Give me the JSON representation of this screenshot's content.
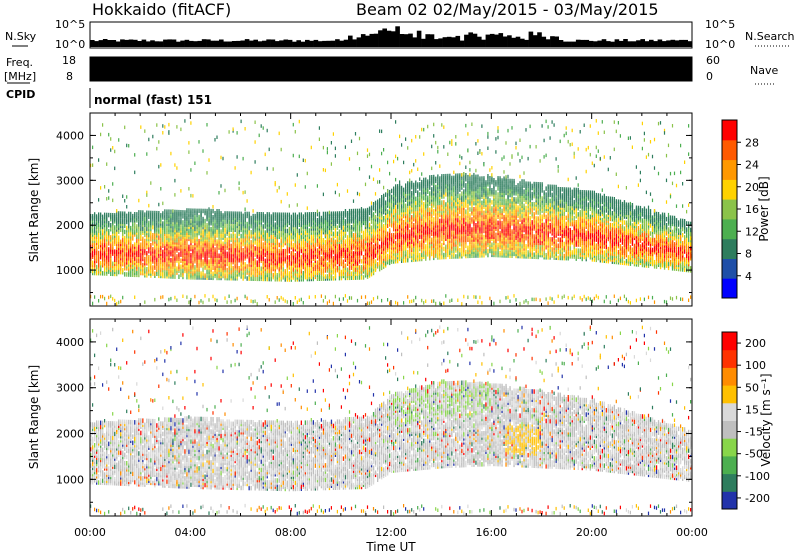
{
  "header": {
    "station": "Hokkaido (fitACF)",
    "beam_info": "Beam 02 02/May/2015 - 03/May/2015"
  },
  "nsky_panel": {
    "left_label": "N.Sky",
    "right_label": "N.Search",
    "left_ticks": [
      "10^5",
      "10^0"
    ],
    "right_ticks": [
      "10^5",
      "10^0"
    ]
  },
  "freq_panel": {
    "left_label_1": "Freq.",
    "left_label_2": "[MHz]",
    "left_ticks": [
      "18",
      "8"
    ],
    "right_label": "Nave",
    "right_ticks": [
      "60",
      "0"
    ],
    "fill_color": "#000000"
  },
  "cpid": {
    "label": "CPID",
    "value": "normal (fast) 151"
  },
  "chart_data": [
    {
      "type": "heatmap",
      "title": "",
      "xlabel": "",
      "ylabel": "Slant Range [km]",
      "yticks": [
        "1000",
        "2000",
        "3000",
        "4000"
      ],
      "ylim": [
        200,
        4500
      ],
      "xlim_hours": [
        0,
        24
      ],
      "colorbar": {
        "label": "Power [dB]",
        "ticks": [
          "4",
          "8",
          "12",
          "16",
          "20",
          "24",
          "28"
        ],
        "range": [
          0,
          32
        ],
        "colors": [
          "#0000ff",
          "#1f4fa8",
          "#2e7d5e",
          "#4caf50",
          "#8bc34a",
          "#ffd200",
          "#ff9800",
          "#ff5a00",
          "#ff0000"
        ]
      },
      "bands": [
        {
          "name": "main_echo_lower_km",
          "values_at_hours": [
            [
              0,
              900
            ],
            [
              4,
              800
            ],
            [
              8,
              750
            ],
            [
              11,
              800
            ],
            [
              12,
              1150
            ],
            [
              14,
              1250
            ],
            [
              16,
              1300
            ],
            [
              20,
              1200
            ],
            [
              24,
              950
            ]
          ]
        },
        {
          "name": "main_echo_upper_km",
          "values_at_hours": [
            [
              0,
              2200
            ],
            [
              4,
              2300
            ],
            [
              8,
              2200
            ],
            [
              11,
              2300
            ],
            [
              12,
              2800
            ],
            [
              14,
              3100
            ],
            [
              16,
              3050
            ],
            [
              20,
              2700
            ],
            [
              24,
              2000
            ]
          ]
        }
      ]
    },
    {
      "type": "heatmap",
      "title": "",
      "xlabel": "Time UT",
      "ylabel": "Slant Range [km]",
      "yticks": [
        "1000",
        "2000",
        "3000",
        "4000"
      ],
      "ylim": [
        200,
        4500
      ],
      "xticks": [
        "00:00",
        "04:00",
        "08:00",
        "12:00",
        "16:00",
        "20:00",
        "00:00"
      ],
      "xlim_hours": [
        0,
        24
      ],
      "colorbar": {
        "label": "Velocity [m s⁻¹]",
        "ticks": [
          "200",
          "100",
          "50",
          "15",
          "-15",
          "-50",
          "-100",
          "-200"
        ],
        "range": [
          -250,
          250
        ],
        "colors": [
          "#2233aa",
          "#2e7d5e",
          "#4caf50",
          "#88d64a",
          "#bfbfbf",
          "#d9d9d9",
          "#ffc000",
          "#ff8c00",
          "#ff3300",
          "#ff0000"
        ]
      }
    }
  ]
}
